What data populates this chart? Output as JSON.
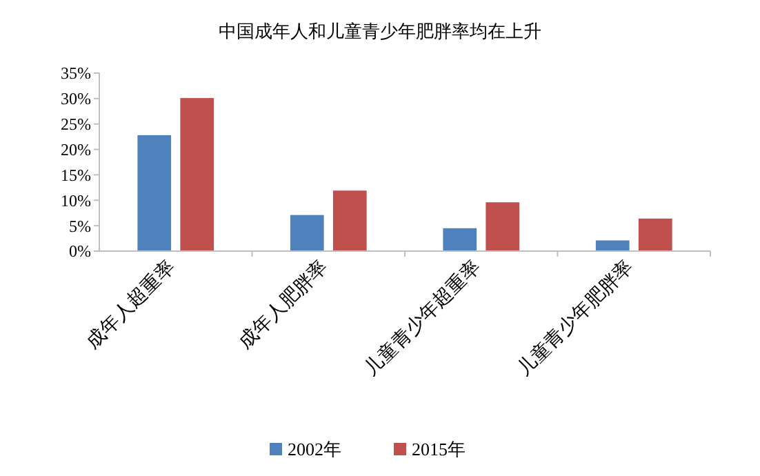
{
  "chart_data": {
    "type": "bar",
    "title": "中国成年人和儿童青少年肥胖率均在上升",
    "categories": [
      "成年人超重率",
      "成年人肥胖率",
      "儿童青少年超重率",
      "儿童青少年肥胖率"
    ],
    "series": [
      {
        "name": "2002年",
        "color": "#4f81bd",
        "values": [
          22.8,
          7.1,
          4.5,
          2.1
        ]
      },
      {
        "name": "2015年",
        "color": "#c0504d",
        "values": [
          30.1,
          11.9,
          9.6,
          6.4
        ]
      }
    ],
    "ylim": [
      0,
      35
    ],
    "yticks": [
      {
        "value": 0,
        "label": "0%"
      },
      {
        "value": 5,
        "label": "5%"
      },
      {
        "value": 10,
        "label": "10%"
      },
      {
        "value": 15,
        "label": "15%"
      },
      {
        "value": 20,
        "label": "20%"
      },
      {
        "value": 25,
        "label": "25%"
      },
      {
        "value": 30,
        "label": "30%"
      },
      {
        "value": 35,
        "label": "35%"
      }
    ],
    "grid": false,
    "legend": "bottom"
  }
}
